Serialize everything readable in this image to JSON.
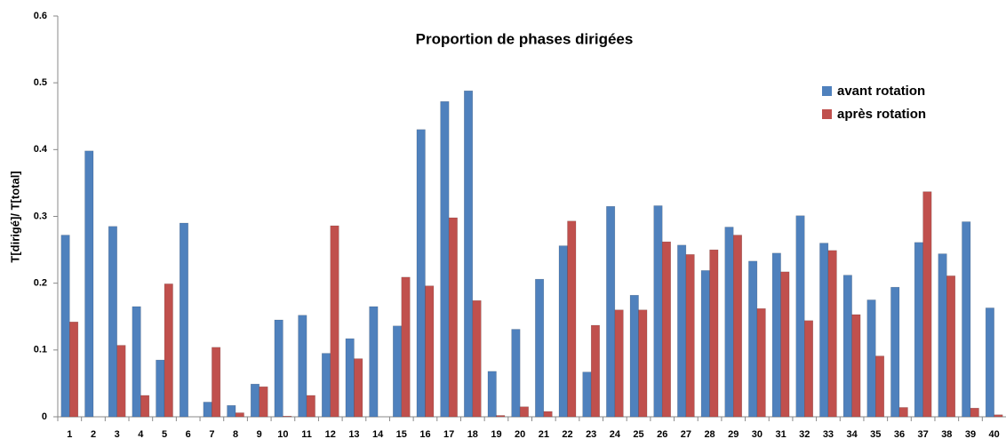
{
  "chart_data": {
    "type": "bar",
    "title": "Proportion de phases dirigées",
    "y_label": "T[dirigé]/ T[total]",
    "categories": [
      "1",
      "2",
      "3",
      "4",
      "5",
      "6",
      "7",
      "8",
      "9",
      "10",
      "11",
      "12",
      "13",
      "14",
      "15",
      "16",
      "17",
      "18",
      "19",
      "20",
      "21",
      "22",
      "23",
      "24",
      "25",
      "26",
      "27",
      "28",
      "29",
      "30",
      "31",
      "32",
      "33",
      "34",
      "35",
      "36",
      "37",
      "38",
      "39",
      "40"
    ],
    "series": [
      {
        "name": "avant rotation",
        "color": "#4f81bd",
        "values": [
          0.272,
          0.398,
          0.285,
          0.165,
          0.085,
          0.29,
          0.022,
          0.017,
          0.049,
          0.145,
          0.152,
          0.095,
          0.117,
          0.165,
          0.136,
          0.43,
          0.472,
          0.488,
          0.068,
          0.131,
          0.206,
          0.256,
          0.067,
          0.315,
          0.182,
          0.316,
          0.257,
          0.219,
          0.284,
          0.233,
          0.245,
          0.301,
          0.26,
          0.212,
          0.175,
          0.194,
          0.261,
          0.244,
          0.292,
          0.163
        ]
      },
      {
        "name": "après rotation",
        "color": "#c0504d",
        "values": [
          0.142,
          0,
          0.107,
          0.032,
          0.199,
          0,
          0.104,
          0.006,
          0.045,
          0.001,
          0.032,
          0.286,
          0.087,
          0,
          0.209,
          0.196,
          0.298,
          0.174,
          0.002,
          0.015,
          0.008,
          0.293,
          0.137,
          0.16,
          0.16,
          0.262,
          0.243,
          0.25,
          0.272,
          0.162,
          0.217,
          0.144,
          0.249,
          0.153,
          0.091,
          0.014,
          0.337,
          0.211,
          0.013,
          0.003
        ]
      }
    ],
    "ylim": [
      0,
      0.6
    ],
    "yticks": [
      0,
      0.1,
      0.2,
      0.3,
      0.4,
      0.5,
      0.6
    ],
    "grid": false,
    "legend": "upper right"
  }
}
